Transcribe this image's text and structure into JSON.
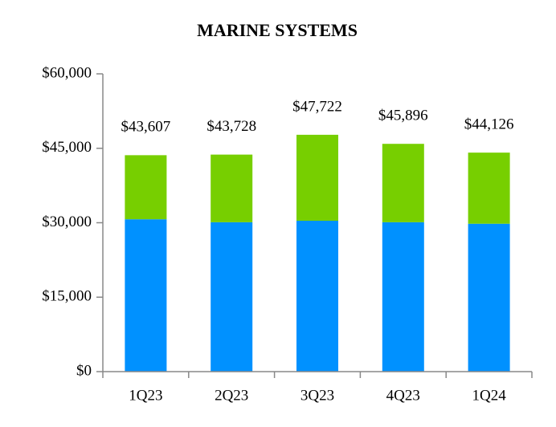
{
  "chart_data": {
    "type": "stacked_bar",
    "title": "MARINE SYSTEMS",
    "categories": [
      "1Q23",
      "2Q23",
      "3Q23",
      "4Q23",
      "1Q24"
    ],
    "series": [
      {
        "color": "#0091ff",
        "values": [
          30700,
          30100,
          30400,
          30100,
          29800
        ]
      },
      {
        "color": "#77cf00",
        "values": [
          12907,
          13628,
          17322,
          15796,
          14326
        ]
      }
    ],
    "totals": [
      43607,
      43728,
      47722,
      45896,
      44126
    ],
    "total_labels": [
      "$43,607",
      "$43,728",
      "$47,722",
      "$45,896",
      "$44,126"
    ],
    "ylim": [
      0,
      60000
    ],
    "yticks": [
      {
        "value": 0,
        "label": "$0"
      },
      {
        "value": 15000,
        "label": "$15,000"
      },
      {
        "value": 30000,
        "label": "$30,000"
      },
      {
        "value": 45000,
        "label": "$45,000"
      },
      {
        "value": 60000,
        "label": "$60,000"
      }
    ]
  }
}
